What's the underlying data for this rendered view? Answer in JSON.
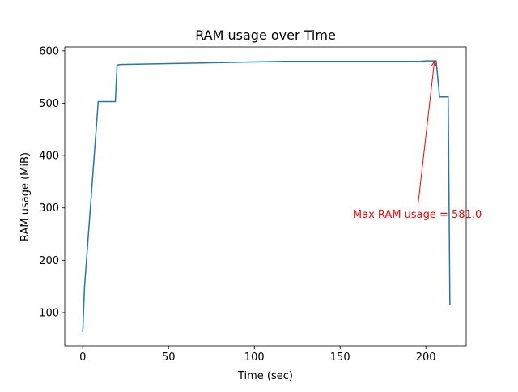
{
  "chart_data": {
    "type": "line",
    "title": "RAM usage over Time",
    "xlabel": "Time (sec)",
    "ylabel": "RAM usage (MiB)",
    "x": [
      0,
      1,
      9,
      19,
      20,
      22,
      117,
      197,
      200,
      206,
      208,
      213,
      214
    ],
    "series": [
      {
        "name": "RAM usage",
        "color": "#1f77b4",
        "values": [
          63,
          148,
          503,
          503,
          573,
          574,
          580,
          580,
          581,
          581,
          512,
          512,
          114
        ]
      }
    ],
    "xlim": [
      -10.5,
      223.5
    ],
    "xticks": [
      0,
      50,
      100,
      150,
      200
    ],
    "ylim": [
      36.5,
      607.5
    ],
    "yticks": [
      100,
      200,
      300,
      400,
      500,
      600
    ],
    "grid": false,
    "annotation": {
      "text": "Max RAM usage = 581.0",
      "xy": [
        205,
        581
      ],
      "xytext": [
        195,
        289
      ],
      "color": "red"
    }
  }
}
